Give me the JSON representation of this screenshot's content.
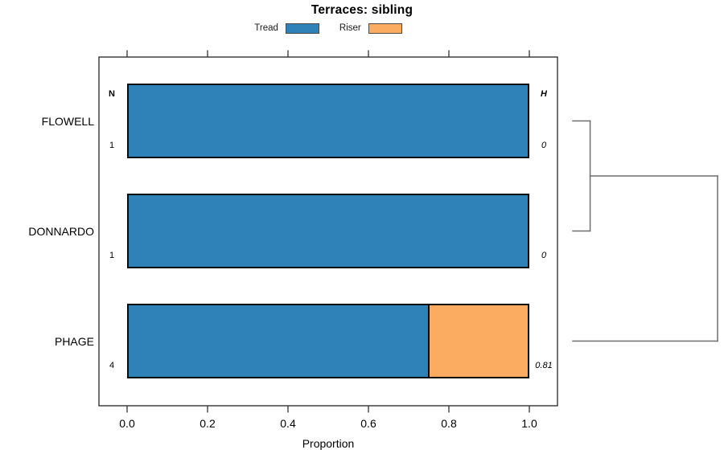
{
  "chart_data": {
    "type": "bar",
    "orientation": "horizontal",
    "stacked": true,
    "title": "Terraces: sibling",
    "xlabel": "Proportion",
    "xlim": [
      0,
      1
    ],
    "xticks": [
      "0.0",
      "0.2",
      "0.4",
      "0.6",
      "0.8",
      "1.0"
    ],
    "categories": [
      "FLOWELL",
      "DONNARDO",
      "PHAGE"
    ],
    "series": [
      {
        "name": "Tread",
        "color": "#2e82b8",
        "values": [
          1.0,
          1.0,
          0.75
        ]
      },
      {
        "name": "Riser",
        "color": "#fcac60",
        "values": [
          0.0,
          0.0,
          0.25
        ]
      }
    ],
    "annotations": {
      "left_header": "N",
      "left_values": [
        "1",
        "1",
        "4"
      ],
      "right_header": "H",
      "right_values": [
        "0",
        "0",
        "0.81"
      ]
    },
    "legend": {
      "position": "top",
      "items": [
        {
          "label": "Tread",
          "color": "#2e82b8"
        },
        {
          "label": "Riser",
          "color": "#fcac60"
        }
      ]
    },
    "dendrogram": {
      "newick": "((FLOWELL,DONNARDO),PHAGE);",
      "tree": {
        "height": 1.0,
        "join": [
          {
            "height": 0.12,
            "join": [
              "FLOWELL",
              "DONNARDO"
            ]
          },
          "PHAGE"
        ]
      }
    },
    "grid": false
  }
}
